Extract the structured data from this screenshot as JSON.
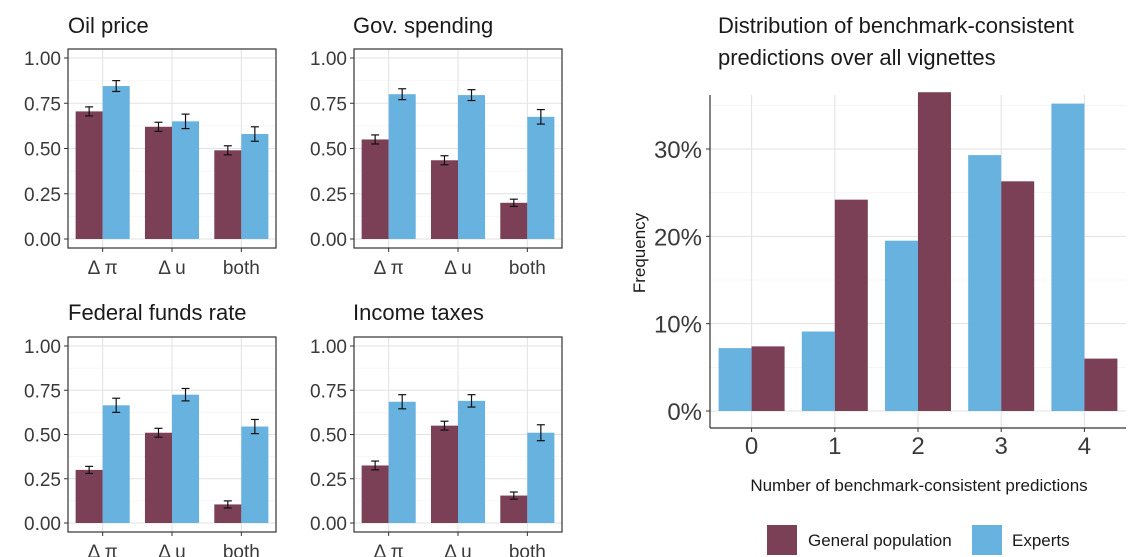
{
  "chart_data": [
    {
      "type": "bar",
      "title": "Oil price",
      "categories": [
        "Δ π",
        "Δ u",
        "both"
      ],
      "series": [
        {
          "values": [
            0.705,
            0.62,
            0.49
          ],
          "errors": [
            0.025,
            0.025,
            0.025
          ]
        },
        {
          "values": [
            0.845,
            0.65,
            0.58
          ],
          "errors": [
            0.03,
            0.04,
            0.04
          ]
        }
      ],
      "ylim": [
        0,
        1.0
      ],
      "yticks": [
        "0.00",
        "0.25",
        "0.50",
        "0.75",
        "1.00"
      ],
      "grid": true
    },
    {
      "type": "bar",
      "title": "Gov. spending",
      "categories": [
        "Δ π",
        "Δ u",
        "both"
      ],
      "series": [
        {
          "values": [
            0.55,
            0.435,
            0.2
          ],
          "errors": [
            0.025,
            0.025,
            0.02
          ]
        },
        {
          "values": [
            0.8,
            0.795,
            0.675
          ],
          "errors": [
            0.03,
            0.03,
            0.04
          ]
        }
      ],
      "ylim": [
        0,
        1.0
      ],
      "yticks": [
        "0.00",
        "0.25",
        "0.50",
        "0.75",
        "1.00"
      ],
      "grid": true
    },
    {
      "type": "bar",
      "title": "Federal funds rate",
      "categories": [
        "Δ π",
        "Δ u",
        "both"
      ],
      "series": [
        {
          "values": [
            0.3,
            0.51,
            0.105
          ],
          "errors": [
            0.02,
            0.025,
            0.02
          ]
        },
        {
          "values": [
            0.665,
            0.725,
            0.545
          ],
          "errors": [
            0.04,
            0.035,
            0.04
          ]
        }
      ],
      "ylim": [
        0,
        1.0
      ],
      "yticks": [
        "0.00",
        "0.25",
        "0.50",
        "0.75",
        "1.00"
      ],
      "grid": true
    },
    {
      "type": "bar",
      "title": "Income taxes",
      "categories": [
        "Δ π",
        "Δ u",
        "both"
      ],
      "series": [
        {
          "values": [
            0.325,
            0.55,
            0.155
          ],
          "errors": [
            0.025,
            0.025,
            0.02
          ]
        },
        {
          "values": [
            0.685,
            0.69,
            0.51
          ],
          "errors": [
            0.04,
            0.035,
            0.045
          ]
        }
      ],
      "ylim": [
        0,
        1.0
      ],
      "yticks": [
        "0.00",
        "0.25",
        "0.50",
        "0.75",
        "1.00"
      ],
      "grid": true
    },
    {
      "type": "bar",
      "title": "Distribution of benchmark-consistent predictions over all vignettes",
      "title_lines": [
        "Distribution of benchmark-consistent",
        "predictions over all vignettes"
      ],
      "xlabel": "Number of benchmark-consistent predictions",
      "ylabel": "Frequency",
      "categories": [
        "0",
        "1",
        "2",
        "3",
        "4"
      ],
      "series": [
        {
          "name": "General population",
          "values": [
            7.4,
            24.2,
            36.5,
            26.3,
            6.0
          ]
        },
        {
          "name": "Experts",
          "values": [
            7.2,
            9.1,
            19.5,
            29.3,
            35.2
          ]
        }
      ],
      "ylim": [
        0,
        38
      ],
      "yticks": [
        "0%",
        "10%",
        "20%",
        "30%"
      ],
      "legend": "bottom",
      "grid": true
    }
  ],
  "colors": {
    "general": "#7b3f56",
    "experts": "#67b2de"
  }
}
